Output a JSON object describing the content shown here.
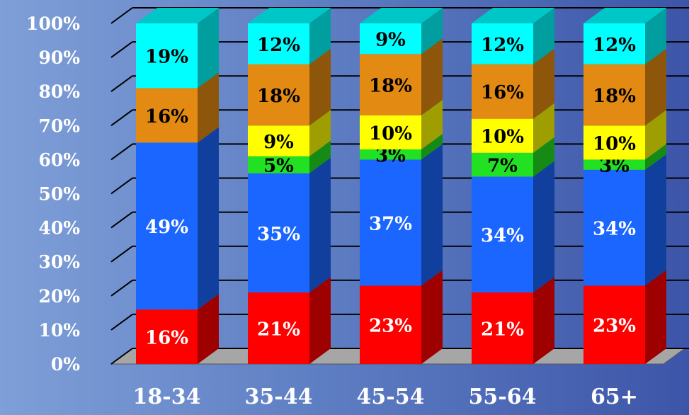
{
  "chart_data": {
    "type": "bar",
    "stacked": true,
    "three_d": true,
    "categories": [
      "18-34",
      "35-44",
      "45-54",
      "55-64",
      "65+"
    ],
    "ylim": [
      0,
      100
    ],
    "yticks": [
      "0%",
      "10%",
      "20%",
      "30%",
      "40%",
      "50%",
      "60%",
      "70%",
      "80%",
      "90%",
      "100%"
    ],
    "grid": true,
    "legend": "none",
    "series": [
      {
        "color": "#ff0000",
        "values": [
          16,
          21,
          23,
          21,
          23
        ]
      },
      {
        "color": "#1a66ff",
        "values": [
          49,
          35,
          37,
          34,
          34
        ]
      },
      {
        "color": "#22e022",
        "values": [
          0,
          5,
          3,
          7,
          3
        ]
      },
      {
        "color": "#ffff00",
        "values": [
          0,
          9,
          10,
          10,
          10
        ]
      },
      {
        "color": "#e38a12",
        "values": [
          16,
          18,
          18,
          16,
          18
        ]
      },
      {
        "color": "#00ffff",
        "values": [
          19,
          12,
          9,
          12,
          12
        ]
      }
    ],
    "data_labels": [
      [
        "16%",
        "21%",
        "23%",
        "21%",
        "23%"
      ],
      [
        "49%",
        "35%",
        "37%",
        "34%",
        "34%"
      ],
      [
        "",
        "5%",
        "3%",
        "7%",
        "3%"
      ],
      [
        "",
        "9%",
        "10%",
        "10%",
        "10%"
      ],
      [
        "16%",
        "18%",
        "18%",
        "16%",
        "18%"
      ],
      [
        "19%",
        "12%",
        "9%",
        "12%",
        "12%"
      ]
    ]
  }
}
